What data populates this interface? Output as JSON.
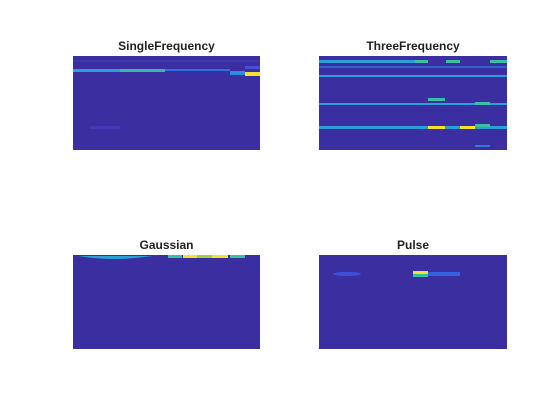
{
  "chart_data": [
    {
      "type": "image",
      "title": "SingleFrequency"
    },
    {
      "type": "image",
      "title": "ThreeFrequency"
    },
    {
      "type": "image",
      "title": "Gaussian"
    },
    {
      "type": "image",
      "title": "Pulse"
    }
  ]
}
